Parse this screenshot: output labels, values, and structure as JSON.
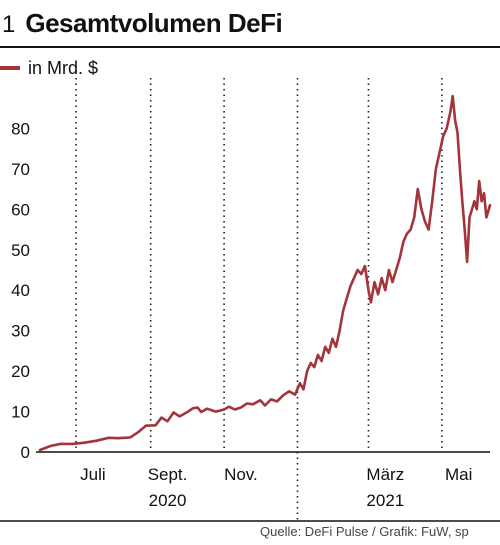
{
  "header": {
    "number": "1",
    "title": "Gesamtvolumen DeFi"
  },
  "legend": {
    "label": "in Mrd. $"
  },
  "source": "Quelle: DeFi Pulse / Grafik: FuW, sp",
  "colors": {
    "series": "#a3343a",
    "axis": "#111111",
    "grid": "#222222"
  },
  "chart_data": {
    "type": "line",
    "title": "Gesamtvolumen DeFi",
    "ylabel": "in Mrd. $",
    "ylim": [
      0,
      90
    ],
    "yticks": [
      0,
      10,
      20,
      30,
      40,
      50,
      60,
      70,
      80
    ],
    "x_range": [
      "2020-06-01",
      "2021-06-10"
    ],
    "x_tick_labels": [
      {
        "date": "2020-07-15",
        "label": "Juli"
      },
      {
        "date": "2020-09-15",
        "label": "Sept."
      },
      {
        "date": "2020-11-15",
        "label": "Nov."
      },
      {
        "date": "2021-03-15",
        "label": "März"
      },
      {
        "date": "2021-05-15",
        "label": "Mai"
      }
    ],
    "x_gridlines": [
      "2020-07-01",
      "2020-09-01",
      "2020-11-01",
      "2021-01-01",
      "2021-03-01",
      "2021-05-01"
    ],
    "year_labels": [
      {
        "date": "2020-09-15",
        "label": "2020"
      },
      {
        "date": "2021-03-15",
        "label": "2021"
      }
    ],
    "year_divider": "2021-01-01",
    "grid": "dotted vertical",
    "legend": "top-left",
    "series": [
      {
        "name": "in Mrd. $",
        "points": [
          [
            "2020-06-01",
            0.5
          ],
          [
            "2020-06-10",
            1.5
          ],
          [
            "2020-06-18",
            2.0
          ],
          [
            "2020-06-28",
            2.0
          ],
          [
            "2020-07-08",
            2.3
          ],
          [
            "2020-07-18",
            2.8
          ],
          [
            "2020-07-28",
            3.5
          ],
          [
            "2020-08-05",
            3.4
          ],
          [
            "2020-08-15",
            3.6
          ],
          [
            "2020-08-22",
            5.0
          ],
          [
            "2020-08-28",
            6.5
          ],
          [
            "2020-09-05",
            6.6
          ],
          [
            "2020-09-10",
            8.5
          ],
          [
            "2020-09-15",
            7.6
          ],
          [
            "2020-09-20",
            9.8
          ],
          [
            "2020-09-25",
            8.8
          ],
          [
            "2020-10-01",
            9.8
          ],
          [
            "2020-10-06",
            10.8
          ],
          [
            "2020-10-10",
            11.0
          ],
          [
            "2020-10-13",
            9.9
          ],
          [
            "2020-10-18",
            10.7
          ],
          [
            "2020-10-25",
            10.0
          ],
          [
            "2020-11-01",
            10.5
          ],
          [
            "2020-11-05",
            11.2
          ],
          [
            "2020-11-10",
            10.5
          ],
          [
            "2020-11-15",
            11.0
          ],
          [
            "2020-11-20",
            12.0
          ],
          [
            "2020-11-25",
            11.8
          ],
          [
            "2020-12-01",
            12.8
          ],
          [
            "2020-12-05",
            11.5
          ],
          [
            "2020-12-10",
            13.0
          ],
          [
            "2020-12-15",
            12.5
          ],
          [
            "2020-12-20",
            14.0
          ],
          [
            "2020-12-25",
            15.0
          ],
          [
            "2020-12-30",
            14.2
          ],
          [
            "2021-01-03",
            17.0
          ],
          [
            "2021-01-06",
            15.5
          ],
          [
            "2021-01-09",
            20.0
          ],
          [
            "2021-01-12",
            22.0
          ],
          [
            "2021-01-15",
            21.0
          ],
          [
            "2021-01-18",
            24.0
          ],
          [
            "2021-01-21",
            22.5
          ],
          [
            "2021-01-24",
            26.0
          ],
          [
            "2021-01-27",
            24.5
          ],
          [
            "2021-01-30",
            28.0
          ],
          [
            "2021-02-02",
            26.0
          ],
          [
            "2021-02-05",
            30.0
          ],
          [
            "2021-02-08",
            35.0
          ],
          [
            "2021-02-11",
            38.0
          ],
          [
            "2021-02-14",
            41.0
          ],
          [
            "2021-02-17",
            43.0
          ],
          [
            "2021-02-20",
            45.0
          ],
          [
            "2021-02-23",
            44.0
          ],
          [
            "2021-02-26",
            46.0
          ],
          [
            "2021-03-01",
            40.0
          ],
          [
            "2021-03-03",
            37.0
          ],
          [
            "2021-03-06",
            42.0
          ],
          [
            "2021-03-09",
            39.0
          ],
          [
            "2021-03-12",
            43.0
          ],
          [
            "2021-03-15",
            40.0
          ],
          [
            "2021-03-18",
            45.0
          ],
          [
            "2021-03-21",
            42.0
          ],
          [
            "2021-03-24",
            45.0
          ],
          [
            "2021-03-27",
            48.0
          ],
          [
            "2021-03-30",
            52.0
          ],
          [
            "2021-04-02",
            54.0
          ],
          [
            "2021-04-05",
            55.0
          ],
          [
            "2021-04-08",
            58.0
          ],
          [
            "2021-04-11",
            65.0
          ],
          [
            "2021-04-14",
            60.0
          ],
          [
            "2021-04-17",
            57.0
          ],
          [
            "2021-04-20",
            55.0
          ],
          [
            "2021-04-23",
            62.0
          ],
          [
            "2021-04-26",
            70.0
          ],
          [
            "2021-04-29",
            74.0
          ],
          [
            "2021-05-02",
            78.0
          ],
          [
            "2021-05-05",
            80.0
          ],
          [
            "2021-05-08",
            84.0
          ],
          [
            "2021-05-10",
            88.0
          ],
          [
            "2021-05-12",
            82.0
          ],
          [
            "2021-05-14",
            79.0
          ],
          [
            "2021-05-16",
            70.0
          ],
          [
            "2021-05-18",
            62.0
          ],
          [
            "2021-05-20",
            55.0
          ],
          [
            "2021-05-22",
            47.0
          ],
          [
            "2021-05-24",
            58.0
          ],
          [
            "2021-05-26",
            60.0
          ],
          [
            "2021-05-28",
            62.0
          ],
          [
            "2021-05-30",
            60.0
          ],
          [
            "2021-06-01",
            67.0
          ],
          [
            "2021-06-03",
            62.0
          ],
          [
            "2021-06-05",
            64.0
          ],
          [
            "2021-06-07",
            58.0
          ],
          [
            "2021-06-10",
            61.0
          ]
        ]
      }
    ]
  }
}
